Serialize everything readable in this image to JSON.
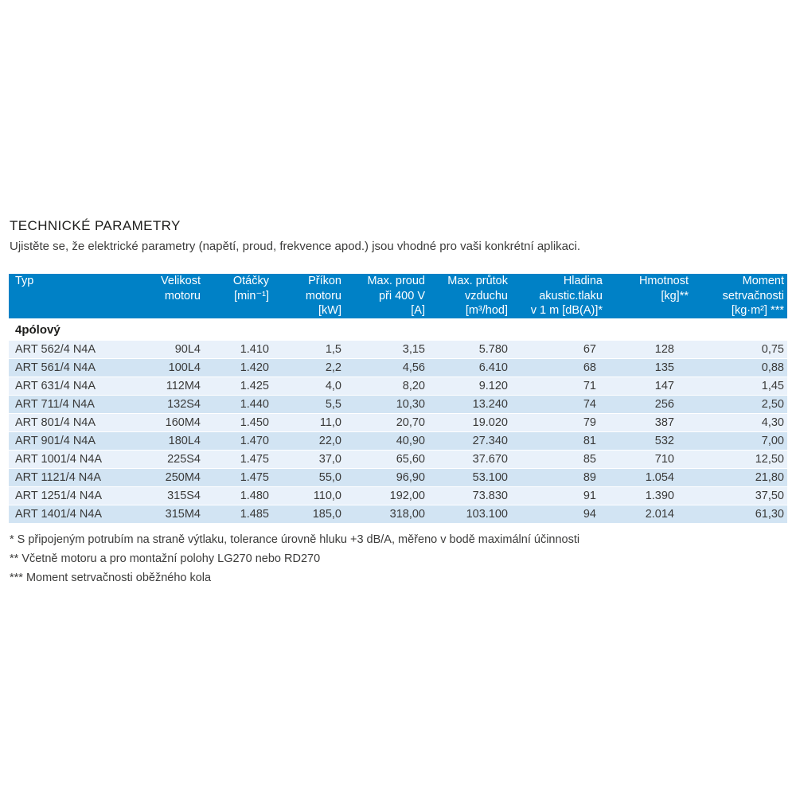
{
  "page": {
    "title": "TECHNICKÉ PARAMETRY",
    "subtitle": "Ujistěte se, že elektrické parametry (napětí, proud, frekvence apod.) jsou vhodné pro vaši konkrétní aplikaci."
  },
  "colors": {
    "header_bg": "#0081c6",
    "row_light": "#e9f1fa",
    "row_dark": "#d2e4f3",
    "header_text": "#ffffff",
    "body_text": "#3a3a39"
  },
  "table": {
    "header": [
      "Typ",
      "Velikost\nmotoru",
      "Otáčky\n[min⁻¹]",
      "Příkon\nmotoru\n[kW]",
      "Max. proud\npři 400 V\n[A]",
      "Max. průtok\nvzduchu\n[m³/hod]",
      "Hladina\nakustic.tlaku\nv 1 m [dB(A)]*",
      "Hmotnost\n[kg]**",
      "Moment\nsetrvačnosti\n[kg·m²] ***"
    ],
    "section": "4pólový",
    "rows": [
      [
        "ART 562/4 N4A",
        "90L4",
        "1.410",
        "1,5",
        "3,15",
        "5.780",
        "67",
        "128",
        "0,75"
      ],
      [
        "ART 561/4 N4A",
        "100L4",
        "1.420",
        "2,2",
        "4,56",
        "6.410",
        "68",
        "135",
        "0,88"
      ],
      [
        "ART 631/4 N4A",
        "112M4",
        "1.425",
        "4,0",
        "8,20",
        "9.120",
        "71",
        "147",
        "1,45"
      ],
      [
        "ART 711/4 N4A",
        "132S4",
        "1.440",
        "5,5",
        "10,30",
        "13.240",
        "74",
        "256",
        "2,50"
      ],
      [
        "ART 801/4 N4A",
        "160M4",
        "1.450",
        "11,0",
        "20,70",
        "19.020",
        "79",
        "387",
        "4,30"
      ],
      [
        "ART 901/4 N4A",
        "180L4",
        "1.470",
        "22,0",
        "40,90",
        "27.340",
        "81",
        "532",
        "7,00"
      ],
      [
        "ART 1001/4 N4A",
        "225S4",
        "1.475",
        "37,0",
        "65,60",
        "37.670",
        "85",
        "710",
        "12,50"
      ],
      [
        "ART 1121/4 N4A",
        "250M4",
        "1.475",
        "55,0",
        "96,90",
        "53.100",
        "89",
        "1.054",
        "21,80"
      ],
      [
        "ART 1251/4 N4A",
        "315S4",
        "1.480",
        "110,0",
        "192,00",
        "73.830",
        "91",
        "1.390",
        "37,50"
      ],
      [
        "ART 1401/4 N4A",
        "315M4",
        "1.485",
        "185,0",
        "318,00",
        "103.100",
        "94",
        "2.014",
        "61,30"
      ]
    ]
  },
  "footnotes": [
    "* S připojeným potrubím na straně výtlaku, tolerance úrovně hluku +3 dB/A, měřeno v bodě maximální účinnosti",
    "** Včetně motoru a pro montažní polohy LG270 nebo RD270",
    "*** Moment setrvačnosti oběžného kola"
  ]
}
